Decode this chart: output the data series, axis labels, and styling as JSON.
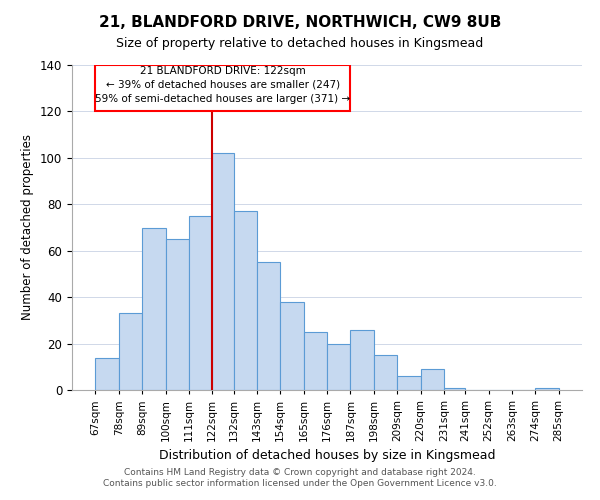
{
  "title1": "21, BLANDFORD DRIVE, NORTHWICH, CW9 8UB",
  "title2": "Size of property relative to detached houses in Kingsmead",
  "xlabel": "Distribution of detached houses by size in Kingsmead",
  "ylabel": "Number of detached properties",
  "bin_labels": [
    "67sqm",
    "78sqm",
    "89sqm",
    "100sqm",
    "111sqm",
    "122sqm",
    "132sqm",
    "143sqm",
    "154sqm",
    "165sqm",
    "176sqm",
    "187sqm",
    "198sqm",
    "209sqm",
    "220sqm",
    "231sqm",
    "241sqm",
    "252sqm",
    "263sqm",
    "274sqm",
    "285sqm"
  ],
  "bin_edges": [
    67,
    78,
    89,
    100,
    111,
    122,
    132,
    143,
    154,
    165,
    176,
    187,
    198,
    209,
    220,
    231,
    241,
    252,
    263,
    274,
    285
  ],
  "bar_heights": [
    14,
    33,
    70,
    65,
    75,
    102,
    77,
    55,
    38,
    25,
    20,
    26,
    15,
    6,
    9,
    1,
    0,
    0,
    0,
    1
  ],
  "bar_color": "#c6d9f0",
  "bar_edge_color": "#5b9bd5",
  "highlight_x": 122,
  "annotation_title": "21 BLANDFORD DRIVE: 122sqm",
  "annotation_line1": "← 39% of detached houses are smaller (247)",
  "annotation_line2": "59% of semi-detached houses are larger (371) →",
  "vline_color": "#cc0000",
  "ylim": [
    0,
    140
  ],
  "xlim_min": 56,
  "xlim_max": 296,
  "footer1": "Contains HM Land Registry data © Crown copyright and database right 2024.",
  "footer2": "Contains public sector information licensed under the Open Government Licence v3.0."
}
